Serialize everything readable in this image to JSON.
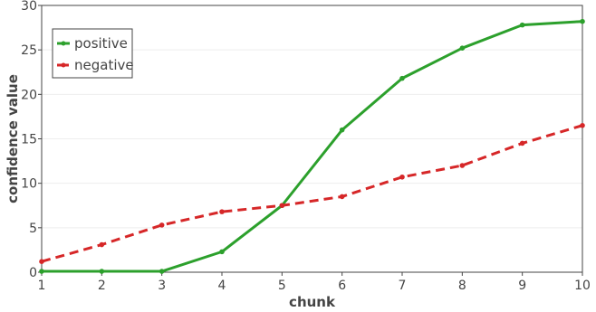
{
  "chart_data": {
    "type": "line",
    "title": "",
    "xlabel": "chunk",
    "ylabel": "confidence value",
    "x": [
      1,
      2,
      3,
      4,
      5,
      6,
      7,
      8,
      9,
      10
    ],
    "xlim": [
      1,
      10
    ],
    "ylim": [
      0,
      30
    ],
    "xticks": [
      1,
      2,
      3,
      4,
      5,
      6,
      7,
      8,
      9,
      10
    ],
    "yticks": [
      0,
      5,
      10,
      15,
      20,
      25,
      30
    ],
    "grid": true,
    "legend_position": "top-left",
    "series": [
      {
        "name": "positive",
        "color": "#2ca02c",
        "dash": "solid",
        "values": [
          0.1,
          0.1,
          0.1,
          2.3,
          7.5,
          16.0,
          21.8,
          25.2,
          27.8,
          28.2
        ]
      },
      {
        "name": "negative",
        "color": "#d62728",
        "dash": "dash",
        "values": [
          1.2,
          3.1,
          5.3,
          6.8,
          7.5,
          8.5,
          10.7,
          12.0,
          14.5,
          16.5
        ]
      }
    ]
  }
}
